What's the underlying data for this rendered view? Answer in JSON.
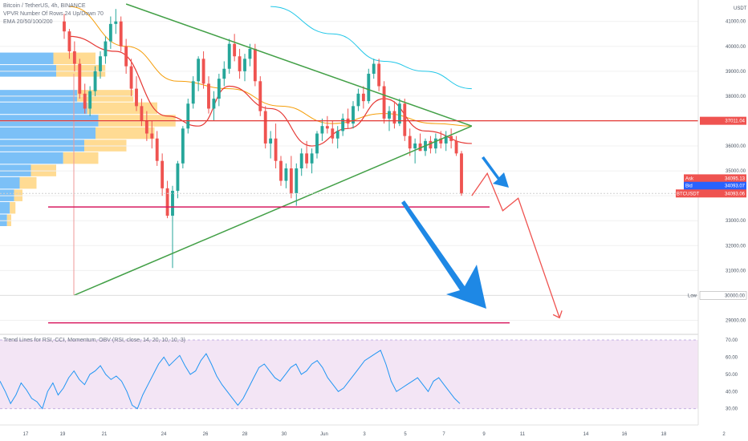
{
  "header": {
    "symbol_line": "Bitcoin / TetherUS, 4h, BINANCE",
    "vpvr_line": "VPVR Number Of Rows 24 Up/Down 70",
    "ema_line": "EMA 20/50/100/200",
    "currency": "USDT"
  },
  "price_axis": {
    "ticks": [
      "41000.00",
      "40000.00",
      "39000.00",
      "38000.00",
      "37000.00",
      "36000.00",
      "35000.00",
      "34000.00",
      "33000.00",
      "32000.00",
      "31000.00",
      "30000.00",
      "29000.00"
    ]
  },
  "price_labels": {
    "resistance": "37011.04",
    "ask_label": "Ask",
    "ask": "34095.13",
    "bid_label": "Bid",
    "bid": "34093.07",
    "symbol_label": "BTCUSDT",
    "last": "34093.06",
    "low_label": "Low",
    "low": "30000.00"
  },
  "oscillator": {
    "title": "Trend Lines for RSI, CCI, Momentum, OBV (RSI, close, 14, 20, 10, 10, 3)",
    "ticks": [
      "70.00",
      "60.00",
      "50.00",
      "40.00",
      "30.00"
    ]
  },
  "time_axis": {
    "labels": [
      "17",
      "19",
      "21",
      "24",
      "26",
      "28",
      "30",
      "Jun",
      "3",
      "5",
      "7",
      "9",
      "11",
      "14",
      "16",
      "18",
      "2"
    ]
  },
  "colors": {
    "up": "#26a69a",
    "down": "#ef5350",
    "ema_red": "#e53935",
    "ema_orange": "#f59e0b",
    "ema_cyan": "#22c7e8",
    "trend_green": "#43a047",
    "support": "#d81b60",
    "vp_blue": "#64b5f6",
    "vp_yellow": "#ffd580",
    "rsi_line": "#2196f3",
    "rsi_band": "#f3e5f5",
    "arrow_blue": "#1e88e5"
  },
  "chart_data": {
    "type": "candlestick",
    "timeframe": "4h",
    "y_range": [
      28500,
      41700
    ],
    "x_range": [
      "May 16",
      "Jun 20"
    ],
    "candles_ohlc": [
      [
        41000,
        41300,
        40300,
        40600
      ],
      [
        40600,
        40700,
        39500,
        39800
      ],
      [
        39800,
        40200,
        39000,
        39300
      ],
      [
        39300,
        39500,
        37900,
        38100
      ],
      [
        38100,
        38500,
        37300,
        37500
      ],
      [
        37500,
        38400,
        37200,
        38200
      ],
      [
        38200,
        39200,
        38000,
        39000
      ],
      [
        39000,
        39800,
        38700,
        39600
      ],
      [
        39600,
        40400,
        39300,
        40200
      ],
      [
        40200,
        41200,
        39900,
        40900
      ],
      [
        40900,
        41500,
        40500,
        41000
      ],
      [
        41000,
        41200,
        39800,
        40000
      ],
      [
        40000,
        40300,
        38900,
        39200
      ],
      [
        39200,
        39500,
        38000,
        38300
      ],
      [
        38300,
        38800,
        37400,
        37600
      ],
      [
        37600,
        37900,
        36800,
        37000
      ],
      [
        37000,
        37400,
        36200,
        36500
      ],
      [
        36500,
        37000,
        35900,
        36300
      ],
      [
        36300,
        36600,
        35200,
        35400
      ],
      [
        35400,
        35700,
        34000,
        34300
      ],
      [
        34300,
        34600,
        33100,
        33200
      ],
      [
        33200,
        34400,
        31100,
        34200
      ],
      [
        34200,
        35400,
        33900,
        35300
      ],
      [
        35300,
        36800,
        35100,
        36700
      ],
      [
        36700,
        37900,
        36500,
        37700
      ],
      [
        37700,
        38800,
        37500,
        38600
      ],
      [
        38600,
        39600,
        38200,
        39500
      ],
      [
        39500,
        39800,
        38300,
        38500
      ],
      [
        38500,
        38800,
        37300,
        37500
      ],
      [
        37500,
        38200,
        37000,
        37900
      ],
      [
        37900,
        38900,
        37600,
        38700
      ],
      [
        38700,
        39400,
        38400,
        39100
      ],
      [
        39100,
        40300,
        38900,
        40100
      ],
      [
        40100,
        40500,
        39400,
        39600
      ],
      [
        39600,
        39900,
        38700,
        39000
      ],
      [
        39000,
        39700,
        38600,
        39500
      ],
      [
        39500,
        40100,
        39200,
        39900
      ],
      [
        39900,
        40100,
        38400,
        38600
      ],
      [
        38600,
        38800,
        37200,
        37400
      ],
      [
        37400,
        37600,
        35900,
        36100
      ],
      [
        36100,
        36600,
        35500,
        36300
      ],
      [
        36300,
        36900,
        35100,
        35400
      ],
      [
        35400,
        35600,
        34400,
        34600
      ],
      [
        34600,
        35300,
        34300,
        35100
      ],
      [
        35100,
        35600,
        33900,
        34100
      ],
      [
        34100,
        35300,
        33600,
        35100
      ],
      [
        35100,
        35900,
        34800,
        35700
      ],
      [
        35700,
        36200,
        35100,
        35300
      ],
      [
        35300,
        35900,
        34900,
        35700
      ],
      [
        35700,
        36600,
        35500,
        36500
      ],
      [
        36500,
        37100,
        36200,
        36800
      ],
      [
        36800,
        37200,
        36500,
        36700
      ],
      [
        36700,
        37000,
        36100,
        36300
      ],
      [
        36300,
        36800,
        35900,
        36600
      ],
      [
        36600,
        37300,
        36400,
        37100
      ],
      [
        37100,
        37500,
        36700,
        36900
      ],
      [
        36900,
        37800,
        36700,
        37600
      ],
      [
        37600,
        38300,
        37400,
        38100
      ],
      [
        38100,
        38400,
        37500,
        37800
      ],
      [
        37800,
        39100,
        37700,
        38900
      ],
      [
        38900,
        39500,
        38700,
        39300
      ],
      [
        39300,
        39500,
        38200,
        38400
      ],
      [
        38400,
        38600,
        36900,
        37100
      ],
      [
        37100,
        37600,
        36600,
        37400
      ],
      [
        37400,
        37800,
        36700,
        36900
      ],
      [
        36900,
        37900,
        36800,
        37700
      ],
      [
        37700,
        37900,
        36200,
        36400
      ],
      [
        36400,
        36700,
        35600,
        35900
      ],
      [
        35900,
        36300,
        35300,
        36100
      ],
      [
        36100,
        36500,
        35800,
        35800
      ],
      [
        35800,
        36300,
        35600,
        36200
      ],
      [
        36200,
        36400,
        35700,
        35900
      ],
      [
        35900,
        36500,
        35700,
        36300
      ],
      [
        36300,
        36600,
        35900,
        36100
      ],
      [
        36100,
        36600,
        35800,
        36400
      ],
      [
        36400,
        36700,
        35900,
        36200
      ],
      [
        36200,
        36400,
        35600,
        35700
      ],
      [
        35700,
        35800,
        34000,
        34093
      ]
    ],
    "ema_20": [
      [
        1,
        40400
      ],
      [
        10,
        39800
      ],
      [
        20,
        37200
      ],
      [
        26,
        36800
      ],
      [
        32,
        38400
      ],
      [
        40,
        37500
      ],
      [
        48,
        36000
      ],
      [
        55,
        36700
      ],
      [
        62,
        37900
      ],
      [
        70,
        36600
      ],
      [
        79,
        36100
      ]
    ],
    "ema_50": [
      [
        1,
        41600
      ],
      [
        12,
        40000
      ],
      [
        22,
        38600
      ],
      [
        32,
        38300
      ],
      [
        42,
        37600
      ],
      [
        52,
        36900
      ],
      [
        62,
        37300
      ],
      [
        72,
        36900
      ],
      [
        79,
        36800
      ]
    ],
    "ema_200": [
      [
        40,
        41600
      ],
      [
        52,
        40500
      ],
      [
        62,
        39400
      ],
      [
        70,
        39000
      ],
      [
        79,
        38300
      ]
    ],
    "trendlines": {
      "descending": [
        [
          12,
          41700
        ],
        [
          79,
          36800
        ]
      ],
      "ascending": [
        [
          3,
          30000
        ],
        [
          79,
          36800
        ]
      ],
      "resistance": 37011.04,
      "support_1": 33550,
      "support_2": 28900
    },
    "projection_path": [
      [
        79,
        34000
      ],
      [
        82,
        34900
      ],
      [
        85,
        33400
      ],
      [
        88,
        33900
      ],
      [
        96,
        29100
      ]
    ],
    "volume_profile": [
      {
        "price": 38000,
        "up": 0.55,
        "down": 0.4
      },
      {
        "price": 37500,
        "up": 0.62,
        "down": 0.5
      },
      {
        "price": 37000,
        "up": 0.7,
        "down": 0.55
      },
      {
        "price": 36500,
        "up": 0.68,
        "down": 0.42
      },
      {
        "price": 36000,
        "up": 0.6,
        "down": 0.3
      },
      {
        "price": 35500,
        "up": 0.45,
        "down": 0.25
      },
      {
        "price": 35000,
        "up": 0.22,
        "down": 0.18
      },
      {
        "price": 34500,
        "up": 0.14,
        "down": 0.12
      },
      {
        "price": 34000,
        "up": 0.1,
        "down": 0.06
      },
      {
        "price": 33500,
        "up": 0.07,
        "down": 0.04
      },
      {
        "price": 33000,
        "up": 0.05,
        "down": 0.03
      },
      {
        "price": 39000,
        "up": 0.4,
        "down": 0.35
      },
      {
        "price": 39500,
        "up": 0.38,
        "down": 0.3
      }
    ],
    "rsi": [
      46,
      40,
      33,
      38,
      45,
      41,
      36,
      34,
      30,
      40,
      45,
      38,
      42,
      48,
      52,
      47,
      44,
      50,
      52,
      55,
      50,
      47,
      49,
      46,
      40,
      32,
      30,
      38,
      44,
      50,
      56,
      60,
      55,
      58,
      61,
      55,
      50,
      52,
      58,
      62,
      56,
      49,
      44,
      40,
      36,
      32,
      36,
      42,
      48,
      54,
      56,
      52,
      48,
      46,
      50,
      54,
      56,
      50,
      52,
      56,
      58,
      54,
      48,
      44,
      40,
      42,
      46,
      50,
      54,
      58,
      60,
      62,
      64,
      56,
      46,
      40,
      42,
      44,
      46,
      48,
      44,
      40,
      46,
      48,
      44,
      40,
      36,
      33
    ],
    "rsi_range": [
      28,
      70
    ]
  }
}
